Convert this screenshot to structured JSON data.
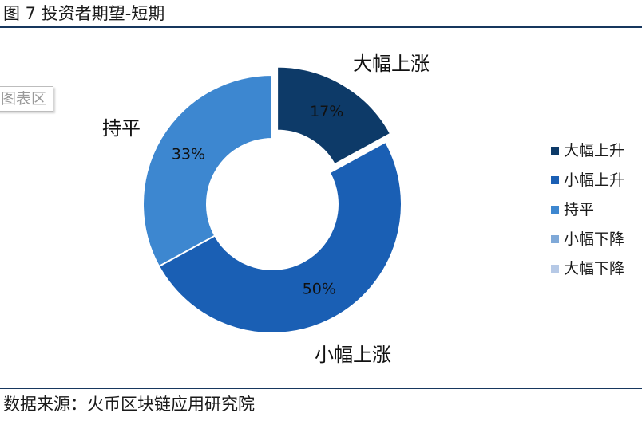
{
  "header": {
    "title": "图 7  投资者期望-短期"
  },
  "chart_area_tag": "图表区",
  "source": {
    "text": "数据来源：火币区块链应用研究院"
  },
  "chart_data": {
    "type": "pie",
    "donut": true,
    "title": "",
    "slices": [
      {
        "name": "大幅上升",
        "label": "大幅上涨",
        "value": 17,
        "value_label": "17%",
        "color": "#0d3a68",
        "exploded": true
      },
      {
        "name": "小幅上升",
        "label": "小幅上涨",
        "value": 50,
        "value_label": "50%",
        "color": "#1a5fb4",
        "exploded": false
      },
      {
        "name": "持平",
        "label": "持平",
        "value": 33,
        "value_label": "33%",
        "color": "#3d87d0",
        "exploded": false
      },
      {
        "name": "小幅下降",
        "label": "",
        "value": 0,
        "value_label": "",
        "color": "#7fa9d8",
        "exploded": false
      },
      {
        "name": "大幅下降",
        "label": "",
        "value": 0,
        "value_label": "",
        "color": "#b6c9e6",
        "exploded": false
      }
    ],
    "legend": {
      "position": "right",
      "entries": [
        "大幅上升",
        "小幅上升",
        "持平",
        "小幅下降",
        "大幅下降"
      ]
    }
  }
}
